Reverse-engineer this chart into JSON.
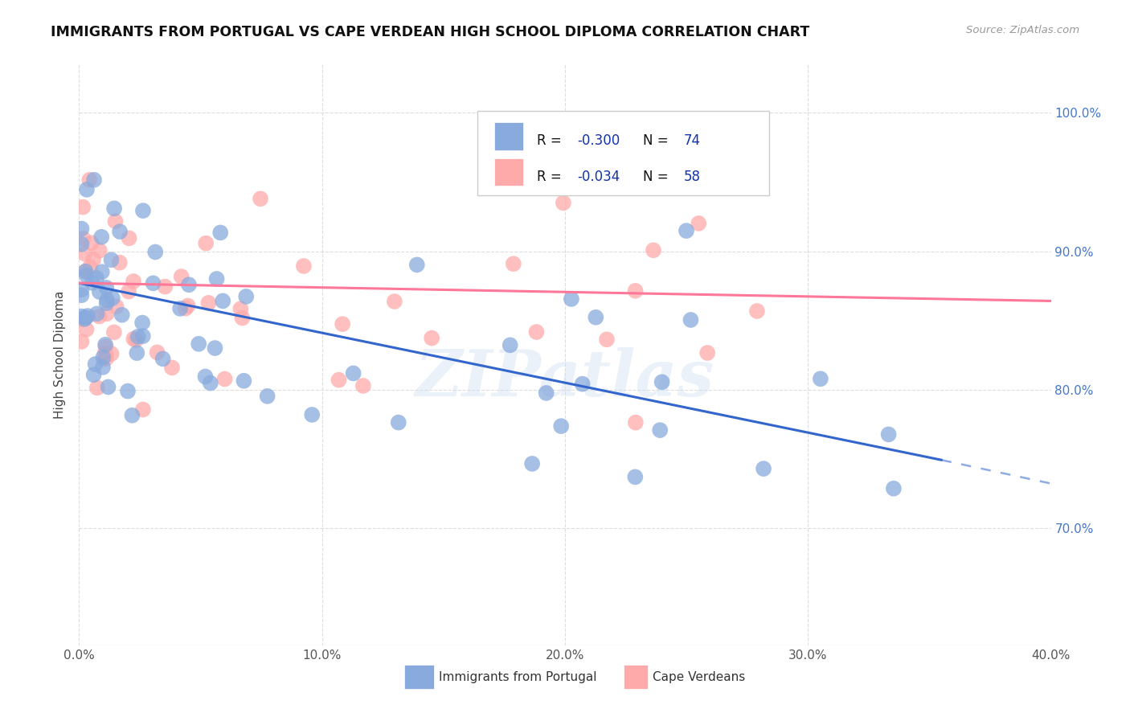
{
  "title": "IMMIGRANTS FROM PORTUGAL VS CAPE VERDEAN HIGH SCHOOL DIPLOMA CORRELATION CHART",
  "source": "Source: ZipAtlas.com",
  "ylabel": "High School Diploma",
  "xlim": [
    0.0,
    0.4
  ],
  "ylim": [
    0.615,
    1.035
  ],
  "blue_color": "#88AADD",
  "pink_color": "#FFAAAA",
  "trend_blue": "#3366CC",
  "trend_pink": "#FF7799",
  "watermark": "ZIPatlas",
  "background_color": "#FFFFFF",
  "grid_color": "#DDDDDD",
  "legend_text_color": "#1133AA",
  "ytick_color": "#4477CC",
  "xtick_color": "#555555",
  "title_color": "#111111",
  "source_color": "#999999",
  "ylabel_color": "#444444"
}
